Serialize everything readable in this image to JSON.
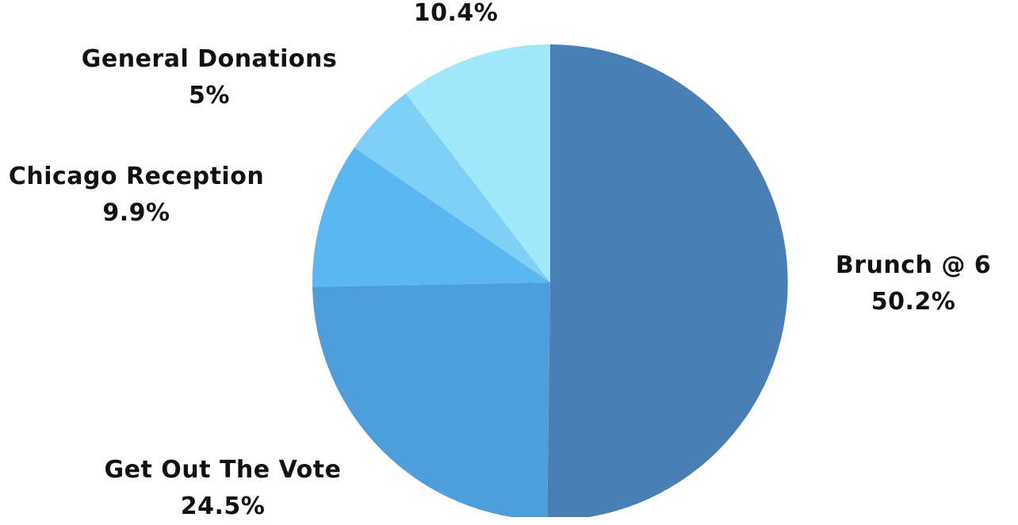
{
  "chart_data": {
    "type": "pie",
    "title": "",
    "slices": [
      {
        "name": "Brunch @ 6",
        "value": 50.2,
        "label": "50.2%",
        "color": "#4a7fb5"
      },
      {
        "name": "Get Out The Vote",
        "value": 24.5,
        "label": "24.5%",
        "color": "#4e9edc"
      },
      {
        "name": "Chicago Reception",
        "value": 9.9,
        "label": "9.9%",
        "color": "#5bb7f0"
      },
      {
        "name": "General Donations",
        "value": 5,
        "label": "5%",
        "color": "#7fd0f7"
      },
      {
        "name": "",
        "value": 10.4,
        "label": "10.4%",
        "color": "#a0e8fc"
      }
    ]
  }
}
